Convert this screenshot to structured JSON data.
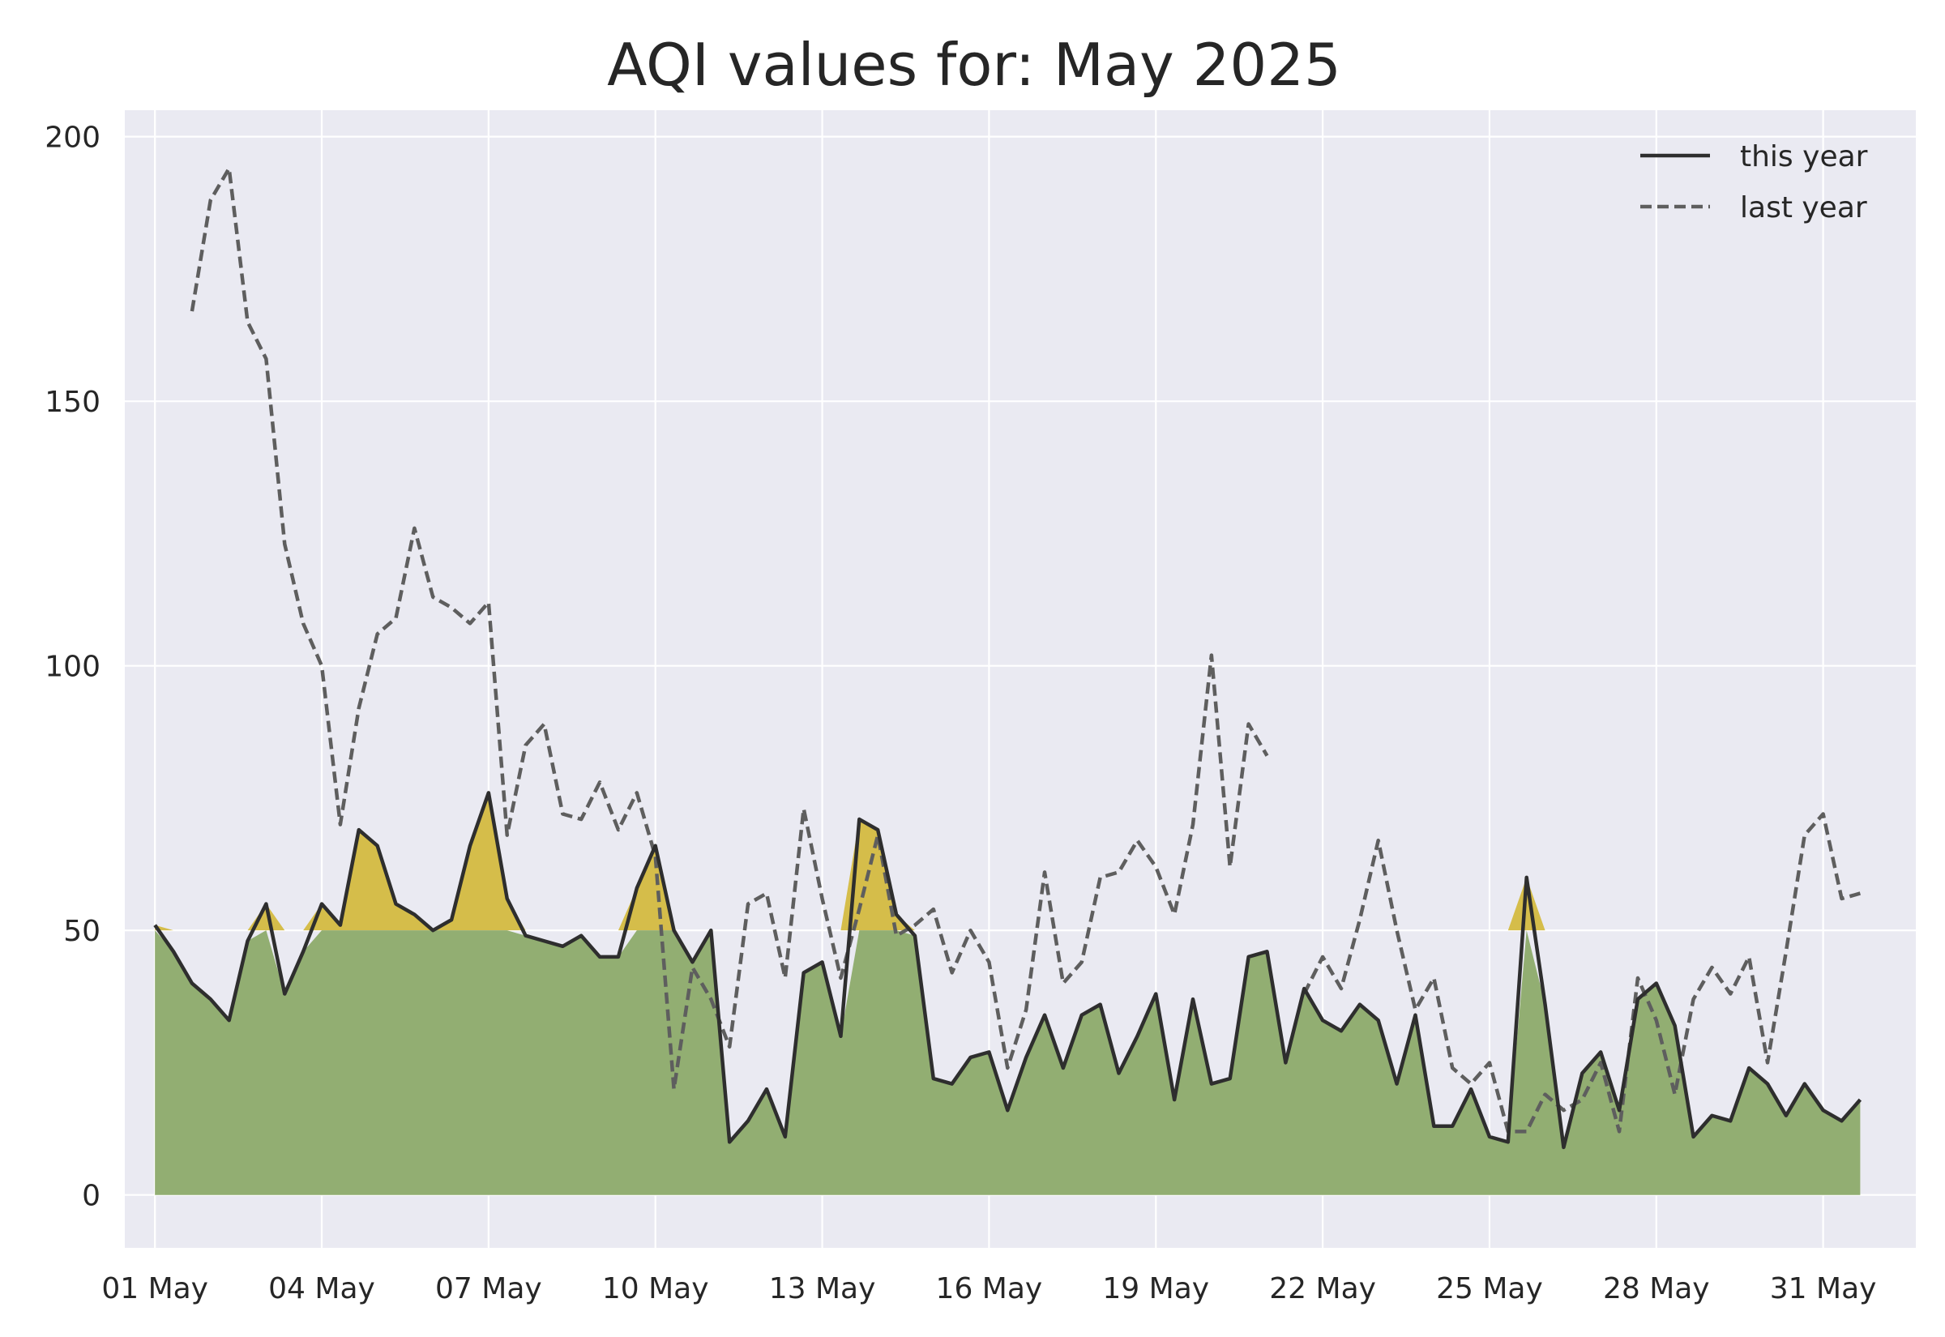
{
  "chart_data": {
    "type": "line",
    "title": "AQI values for: May 2025",
    "xlabel": "",
    "ylabel": "",
    "ylim": [
      -10,
      205
    ],
    "xlim": [
      "2025-04-30 11:00",
      "2025-06-01 16:00"
    ],
    "grid": true,
    "legend_position": "top-right",
    "x_tick_labels": [
      "01 May",
      "04 May",
      "07 May",
      "10 May",
      "13 May",
      "16 May",
      "19 May",
      "22 May",
      "25 May",
      "28 May",
      "31 May"
    ],
    "x_tick_dates": [
      "2025-05-01",
      "2025-05-04",
      "2025-05-07",
      "2025-05-10",
      "2025-05-13",
      "2025-05-16",
      "2025-05-19",
      "2025-05-22",
      "2025-05-25",
      "2025-05-28",
      "2025-05-31"
    ],
    "y_ticks": [
      0,
      50,
      100,
      150,
      200
    ],
    "fill_threshold": 50,
    "colors": {
      "background": "#eaeaf2",
      "grid": "#ffffff",
      "this_year_line": "#2e2e2e",
      "last_year_line": "#5e5e5e",
      "fill_good": "#92ae72",
      "fill_moderate": "#d5bd4a"
    },
    "series": [
      {
        "name": "this year",
        "style": "solid",
        "points": [
          [
            "2025-05-01 00:00",
            51
          ],
          [
            "2025-05-01 08:00",
            46
          ],
          [
            "2025-05-01 16:00",
            40
          ],
          [
            "2025-05-02 00:00",
            37
          ],
          [
            "2025-05-02 08:00",
            33
          ],
          [
            "2025-05-02 16:00",
            48
          ],
          [
            "2025-05-03 00:00",
            55
          ],
          [
            "2025-05-03 08:00",
            38
          ],
          [
            "2025-05-03 16:00",
            46
          ],
          [
            "2025-05-04 00:00",
            55
          ],
          [
            "2025-05-04 08:00",
            51
          ],
          [
            "2025-05-04 16:00",
            69
          ],
          [
            "2025-05-05 00:00",
            66
          ],
          [
            "2025-05-05 08:00",
            55
          ],
          [
            "2025-05-05 16:00",
            53
          ],
          [
            "2025-05-06 00:00",
            50
          ],
          [
            "2025-05-06 08:00",
            52
          ],
          [
            "2025-05-06 16:00",
            66
          ],
          [
            "2025-05-07 00:00",
            76
          ],
          [
            "2025-05-07 08:00",
            56
          ],
          [
            "2025-05-07 16:00",
            49
          ],
          [
            "2025-05-08 00:00",
            48
          ],
          [
            "2025-05-08 08:00",
            47
          ],
          [
            "2025-05-08 16:00",
            49
          ],
          [
            "2025-05-09 00:00",
            45
          ],
          [
            "2025-05-09 08:00",
            45
          ],
          [
            "2025-05-09 16:00",
            58
          ],
          [
            "2025-05-10 00:00",
            66
          ],
          [
            "2025-05-10 08:00",
            50
          ],
          [
            "2025-05-10 16:00",
            44
          ],
          [
            "2025-05-11 00:00",
            50
          ],
          [
            "2025-05-11 08:00",
            10
          ],
          [
            "2025-05-11 16:00",
            14
          ],
          [
            "2025-05-12 00:00",
            20
          ],
          [
            "2025-05-12 08:00",
            11
          ],
          [
            "2025-05-12 16:00",
            42
          ],
          [
            "2025-05-13 00:00",
            44
          ],
          [
            "2025-05-13 08:00",
            30
          ],
          [
            "2025-05-13 16:00",
            71
          ],
          [
            "2025-05-14 00:00",
            69
          ],
          [
            "2025-05-14 08:00",
            53
          ],
          [
            "2025-05-14 16:00",
            49
          ],
          [
            "2025-05-15 00:00",
            22
          ],
          [
            "2025-05-15 08:00",
            21
          ],
          [
            "2025-05-15 16:00",
            26
          ],
          [
            "2025-05-16 00:00",
            27
          ],
          [
            "2025-05-16 08:00",
            16
          ],
          [
            "2025-05-16 16:00",
            26
          ],
          [
            "2025-05-17 00:00",
            34
          ],
          [
            "2025-05-17 08:00",
            24
          ],
          [
            "2025-05-17 16:00",
            34
          ],
          [
            "2025-05-18 00:00",
            36
          ],
          [
            "2025-05-18 08:00",
            23
          ],
          [
            "2025-05-18 16:00",
            30
          ],
          [
            "2025-05-19 00:00",
            38
          ],
          [
            "2025-05-19 08:00",
            18
          ],
          [
            "2025-05-19 16:00",
            37
          ],
          [
            "2025-05-20 00:00",
            21
          ],
          [
            "2025-05-20 08:00",
            22
          ],
          [
            "2025-05-20 16:00",
            45
          ],
          [
            "2025-05-21 00:00",
            46
          ],
          [
            "2025-05-21 08:00",
            25
          ],
          [
            "2025-05-21 16:00",
            39
          ],
          [
            "2025-05-22 00:00",
            33
          ],
          [
            "2025-05-22 08:00",
            31
          ],
          [
            "2025-05-22 16:00",
            36
          ],
          [
            "2025-05-23 00:00",
            33
          ],
          [
            "2025-05-23 08:00",
            21
          ],
          [
            "2025-05-23 16:00",
            34
          ],
          [
            "2025-05-24 00:00",
            13
          ],
          [
            "2025-05-24 08:00",
            13
          ],
          [
            "2025-05-24 16:00",
            20
          ],
          [
            "2025-05-25 00:00",
            11
          ],
          [
            "2025-05-25 08:00",
            10
          ],
          [
            "2025-05-25 16:00",
            60
          ],
          [
            "2025-05-26 00:00",
            36
          ],
          [
            "2025-05-26 08:00",
            9
          ],
          [
            "2025-05-26 16:00",
            23
          ],
          [
            "2025-05-27 00:00",
            27
          ],
          [
            "2025-05-27 08:00",
            16
          ],
          [
            "2025-05-27 16:00",
            37
          ],
          [
            "2025-05-28 00:00",
            40
          ],
          [
            "2025-05-28 08:00",
            32
          ],
          [
            "2025-05-28 16:00",
            11
          ],
          [
            "2025-05-29 00:00",
            15
          ],
          [
            "2025-05-29 08:00",
            14
          ],
          [
            "2025-05-29 16:00",
            24
          ],
          [
            "2025-05-30 00:00",
            21
          ],
          [
            "2025-05-30 08:00",
            15
          ],
          [
            "2025-05-30 16:00",
            21
          ],
          [
            "2025-05-31 00:00",
            16
          ],
          [
            "2025-05-31 08:00",
            14
          ],
          [
            "2025-05-31 16:00",
            18
          ]
        ]
      },
      {
        "name": "last year",
        "style": "dashed",
        "points": [
          [
            "2025-05-01 16:00",
            167
          ],
          [
            "2025-05-02 00:00",
            188
          ],
          [
            "2025-05-02 08:00",
            194
          ],
          [
            "2025-05-02 16:00",
            165
          ],
          [
            "2025-05-03 00:00",
            158
          ],
          [
            "2025-05-03 08:00",
            123
          ],
          [
            "2025-05-03 16:00",
            108
          ],
          [
            "2025-05-04 00:00",
            100
          ],
          [
            "2025-05-04 08:00",
            70
          ],
          [
            "2025-05-04 16:00",
            92
          ],
          [
            "2025-05-05 00:00",
            106
          ],
          [
            "2025-05-05 08:00",
            109
          ],
          [
            "2025-05-05 16:00",
            126
          ],
          [
            "2025-05-06 00:00",
            113
          ],
          [
            "2025-05-06 08:00",
            111
          ],
          [
            "2025-05-06 16:00",
            108
          ],
          [
            "2025-05-07 00:00",
            112
          ],
          [
            "2025-05-07 08:00",
            68
          ],
          [
            "2025-05-07 16:00",
            85
          ],
          [
            "2025-05-08 00:00",
            89
          ],
          [
            "2025-05-08 08:00",
            72
          ],
          [
            "2025-05-08 16:00",
            71
          ],
          [
            "2025-05-09 00:00",
            78
          ],
          [
            "2025-05-09 08:00",
            69
          ],
          [
            "2025-05-09 16:00",
            76
          ],
          [
            "2025-05-10 00:00",
            64
          ],
          [
            "2025-05-10 08:00",
            20
          ],
          [
            "2025-05-10 16:00",
            43
          ],
          [
            "2025-05-11 00:00",
            37
          ],
          [
            "2025-05-11 08:00",
            28
          ],
          [
            "2025-05-11 16:00",
            55
          ],
          [
            "2025-05-12 00:00",
            57
          ],
          [
            "2025-05-12 08:00",
            41
          ],
          [
            "2025-05-12 16:00",
            73
          ],
          [
            "2025-05-13 00:00",
            56
          ],
          [
            "2025-05-13 08:00",
            41
          ],
          [
            "2025-05-13 16:00",
            54
          ],
          [
            "2025-05-14 00:00",
            68
          ],
          [
            "2025-05-14 08:00",
            49
          ],
          [
            "2025-05-14 16:00",
            51
          ],
          [
            "2025-05-15 00:00",
            54
          ],
          [
            "2025-05-15 08:00",
            42
          ],
          [
            "2025-05-15 16:00",
            50
          ],
          [
            "2025-05-16 00:00",
            44
          ],
          [
            "2025-05-16 08:00",
            24
          ],
          [
            "2025-05-16 16:00",
            35
          ],
          [
            "2025-05-17 00:00",
            61
          ],
          [
            "2025-05-17 08:00",
            40
          ],
          [
            "2025-05-17 16:00",
            44
          ],
          [
            "2025-05-18 00:00",
            60
          ],
          [
            "2025-05-18 08:00",
            61
          ],
          [
            "2025-05-18 16:00",
            67
          ],
          [
            "2025-05-19 00:00",
            62
          ],
          [
            "2025-05-19 08:00",
            53
          ],
          [
            "2025-05-19 16:00",
            70
          ],
          [
            "2025-05-20 00:00",
            102
          ],
          [
            "2025-05-20 08:00",
            62
          ],
          [
            "2025-05-20 16:00",
            89
          ],
          [
            "2025-05-21 00:00",
            83
          ],
          null,
          [
            "2025-05-21 16:00",
            38
          ],
          [
            "2025-05-22 00:00",
            45
          ],
          [
            "2025-05-22 08:00",
            39
          ],
          [
            "2025-05-22 16:00",
            52
          ],
          [
            "2025-05-23 00:00",
            67
          ],
          [
            "2025-05-23 08:00",
            50
          ],
          [
            "2025-05-23 16:00",
            35
          ],
          [
            "2025-05-24 00:00",
            41
          ],
          [
            "2025-05-24 08:00",
            24
          ],
          [
            "2025-05-24 16:00",
            21
          ],
          [
            "2025-05-25 00:00",
            25
          ],
          [
            "2025-05-25 08:00",
            12
          ],
          [
            "2025-05-25 16:00",
            12
          ],
          [
            "2025-05-26 00:00",
            19
          ],
          [
            "2025-05-26 08:00",
            16
          ],
          [
            "2025-05-26 16:00",
            18
          ],
          [
            "2025-05-27 00:00",
            25
          ],
          [
            "2025-05-27 08:00",
            12
          ],
          [
            "2025-05-27 16:00",
            41
          ],
          [
            "2025-05-28 00:00",
            33
          ],
          [
            "2025-05-28 08:00",
            19
          ],
          [
            "2025-05-28 16:00",
            37
          ],
          [
            "2025-05-29 00:00",
            43
          ],
          [
            "2025-05-29 08:00",
            38
          ],
          [
            "2025-05-29 16:00",
            45
          ],
          [
            "2025-05-30 00:00",
            25
          ],
          [
            "2025-05-30 08:00",
            46
          ],
          [
            "2025-05-30 16:00",
            68
          ],
          [
            "2025-05-31 00:00",
            72
          ],
          [
            "2025-05-31 08:00",
            56
          ],
          [
            "2025-05-31 16:00",
            57
          ]
        ]
      }
    ]
  }
}
